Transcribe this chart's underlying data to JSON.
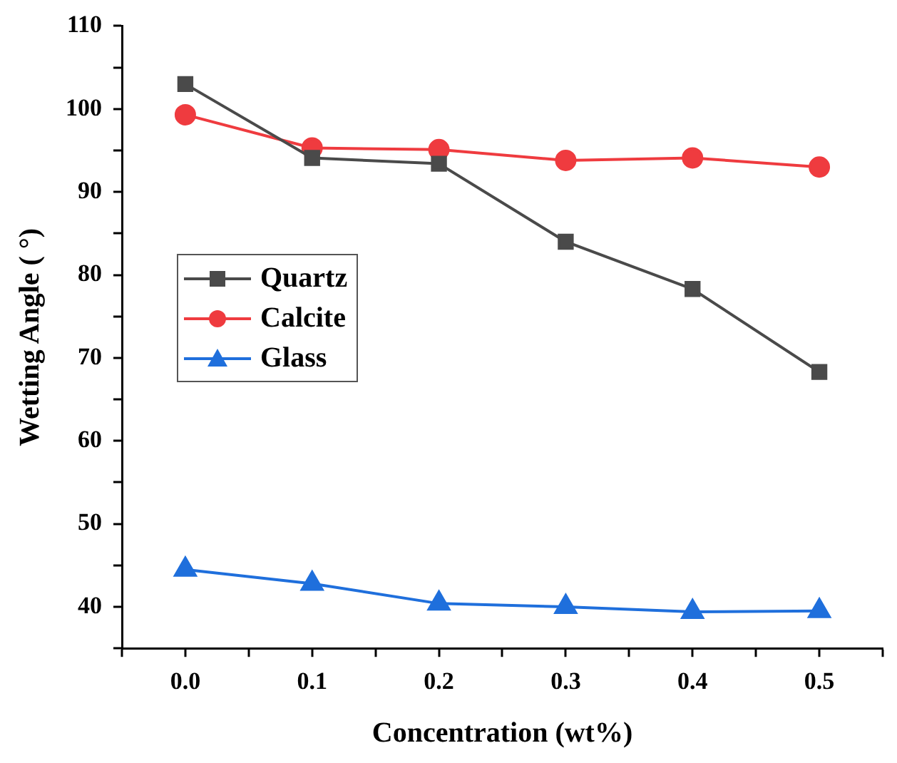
{
  "chart_data": {
    "type": "line",
    "xlabel": "Concentration (wt%)",
    "ylabel": "Wetting Angle ( °)",
    "x": [
      0.0,
      0.1,
      0.2,
      0.3,
      0.4,
      0.5
    ],
    "series": [
      {
        "name": "Quartz",
        "color": "#4a4a4a",
        "marker": "square",
        "values": [
          103.0,
          94.1,
          93.4,
          84.0,
          78.3,
          68.3
        ]
      },
      {
        "name": "Calcite",
        "color": "#ef3b3f",
        "marker": "circle",
        "values": [
          99.3,
          95.3,
          95.1,
          93.8,
          94.1,
          93.0
        ]
      },
      {
        "name": "Glass",
        "color": "#1f6fdc",
        "marker": "triangle",
        "values": [
          44.5,
          42.8,
          40.4,
          40.0,
          39.4,
          39.5
        ]
      }
    ],
    "xlim": [
      -0.05,
      0.55
    ],
    "xticks": [
      {
        "value": -0.05,
        "label": null
      },
      {
        "value": 0.0,
        "label": "0.0"
      },
      {
        "value": 0.05,
        "label": null
      },
      {
        "value": 0.1,
        "label": "0.1"
      },
      {
        "value": 0.15,
        "label": null
      },
      {
        "value": 0.2,
        "label": "0.2"
      },
      {
        "value": 0.25,
        "label": null
      },
      {
        "value": 0.3,
        "label": "0.3"
      },
      {
        "value": 0.35,
        "label": null
      },
      {
        "value": 0.4,
        "label": "0.4"
      },
      {
        "value": 0.45,
        "label": null
      },
      {
        "value": 0.5,
        "label": "0.5"
      },
      {
        "value": 0.55,
        "label": null
      }
    ],
    "ylim": [
      35,
      110
    ],
    "yticks": [
      {
        "value": 35,
        "label": null
      },
      40,
      {
        "value": 45,
        "label": null
      },
      50,
      {
        "value": 55,
        "label": null
      },
      60,
      {
        "value": 65,
        "label": null
      },
      70,
      {
        "value": 75,
        "label": null
      },
      80,
      {
        "value": 85,
        "label": null
      },
      90,
      {
        "value": 95,
        "label": null
      },
      100,
      {
        "value": 105,
        "label": null
      },
      110
    ],
    "grid": false,
    "legend": "left",
    "line_style": "solid"
  }
}
